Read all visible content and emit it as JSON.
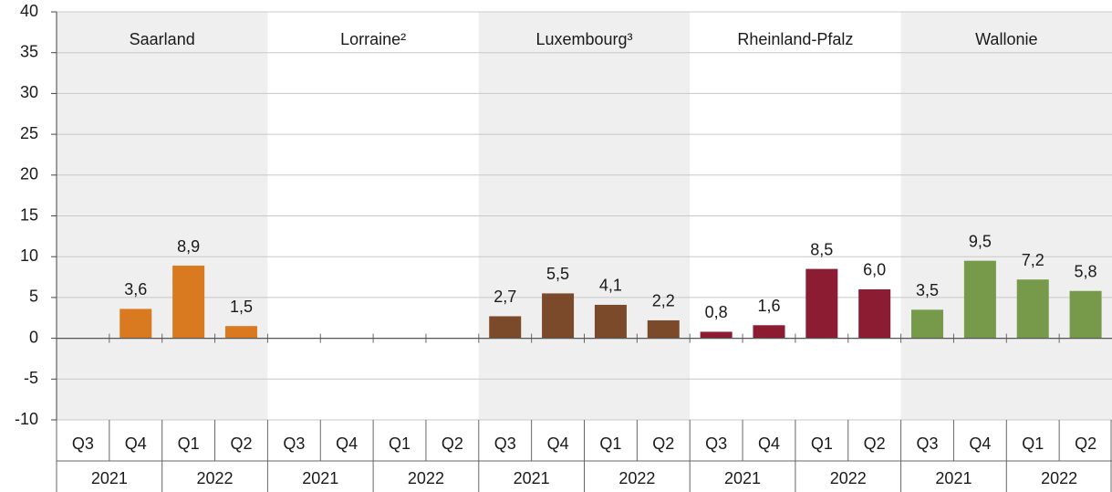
{
  "chart_data": {
    "type": "bar",
    "quarters": [
      "Q3",
      "Q4",
      "Q1",
      "Q2"
    ],
    "years": [
      "2021",
      "2022"
    ],
    "series": [
      {
        "name": "Saarland",
        "color": "#d97a20",
        "values": [
          null,
          3.6,
          8.9,
          1.5
        ],
        "value_labels": [
          null,
          "3,6",
          "8,9",
          "1,5"
        ]
      },
      {
        "name": "Lorraine²",
        "values": [
          null,
          null,
          null,
          null
        ]
      },
      {
        "name": "Luxembourg³",
        "color": "#7b4a2b",
        "values": [
          2.7,
          5.5,
          4.1,
          2.2
        ],
        "value_labels": [
          "2,7",
          "5,5",
          "4,1",
          "2,2"
        ]
      },
      {
        "name": "Rheinland-Pfalz",
        "color": "#8b1c32",
        "values": [
          0.8,
          1.6,
          8.5,
          6.0
        ],
        "value_labels": [
          "0,8",
          "1,6",
          "8,5",
          "6,0"
        ]
      },
      {
        "name": "Wallonie",
        "color": "#76994a",
        "values": [
          3.5,
          9.5,
          7.2,
          5.8
        ],
        "value_labels": [
          "3,5",
          "9,5",
          "7,2",
          "5,8"
        ]
      }
    ],
    "ylim": [
      -10,
      40
    ],
    "yticks": [
      -10,
      -5,
      0,
      5,
      10,
      15,
      20,
      25,
      30,
      35,
      40
    ],
    "grid": true
  }
}
